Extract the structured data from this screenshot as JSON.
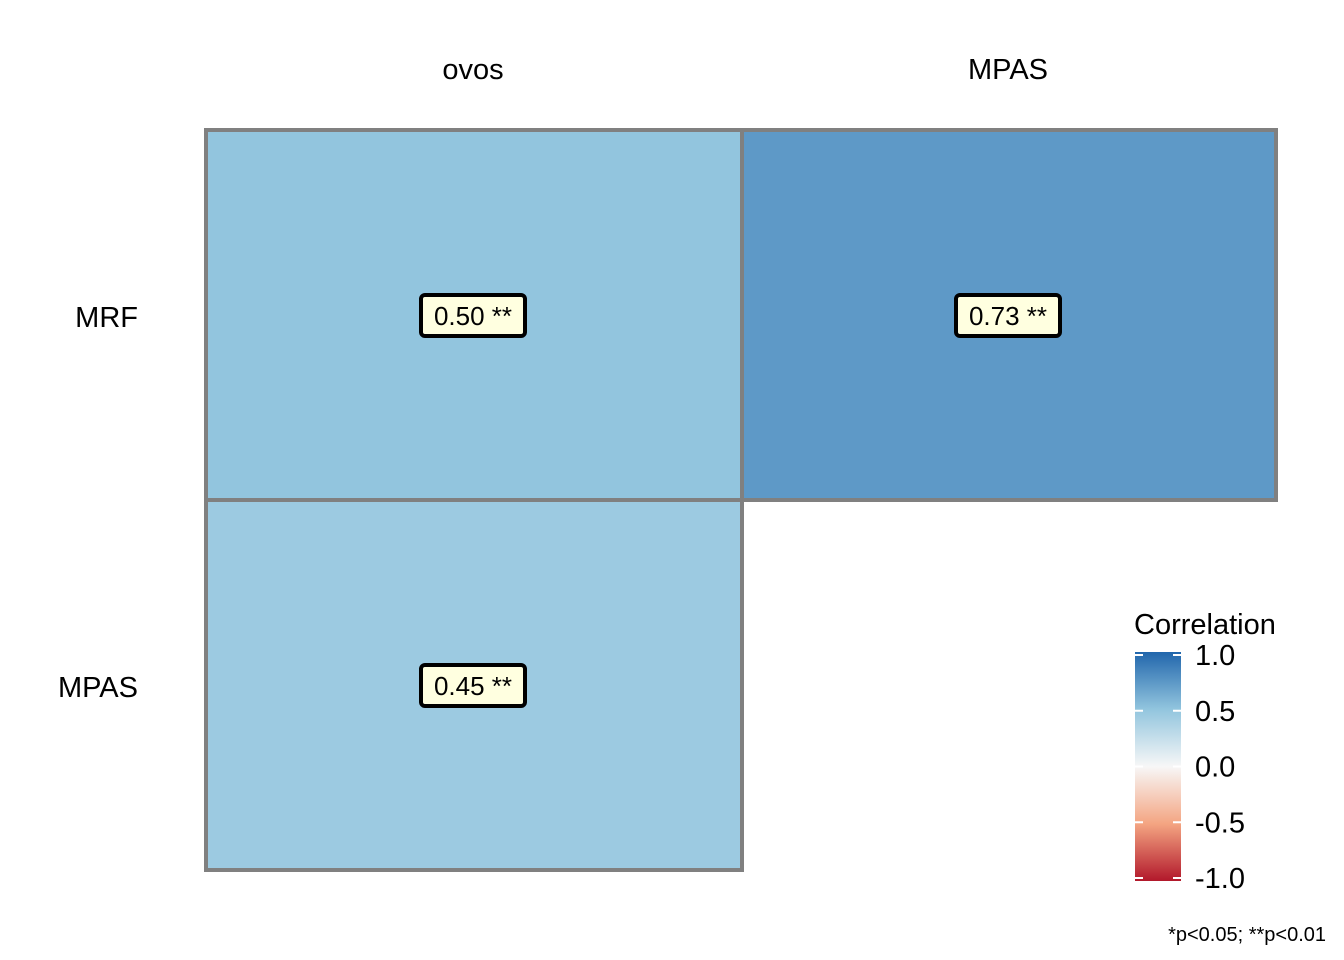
{
  "chart_data": {
    "type": "heatmap",
    "x_categories": [
      "ovos",
      "MPAS"
    ],
    "y_categories": [
      "MRF",
      "MPAS"
    ],
    "cells": [
      {
        "row": "MRF",
        "col": "ovos",
        "value": 0.5,
        "label": "0.50 **"
      },
      {
        "row": "MRF",
        "col": "MPAS",
        "value": 0.73,
        "label": "0.73 **"
      },
      {
        "row": "MPAS",
        "col": "ovos",
        "value": 0.45,
        "label": "0.45 **"
      }
    ],
    "legend": {
      "title": "Correlation",
      "ticks": [
        "1.0",
        "0.5",
        "0.0",
        "-0.5",
        "-1.0"
      ],
      "tick_values": [
        1.0,
        0.5,
        0.0,
        -0.5,
        -1.0
      ],
      "range": [
        -1.0,
        1.0
      ],
      "placement": "bottom-right"
    },
    "note": "*p<0.05; **p<0.01",
    "colors": {
      "low": "#B2182B",
      "mid": "#F7F7F7",
      "high": "#2166AC",
      "cell_border": "#808080",
      "label_fill": "#FFFFE0",
      "label_border": "#000000"
    }
  }
}
